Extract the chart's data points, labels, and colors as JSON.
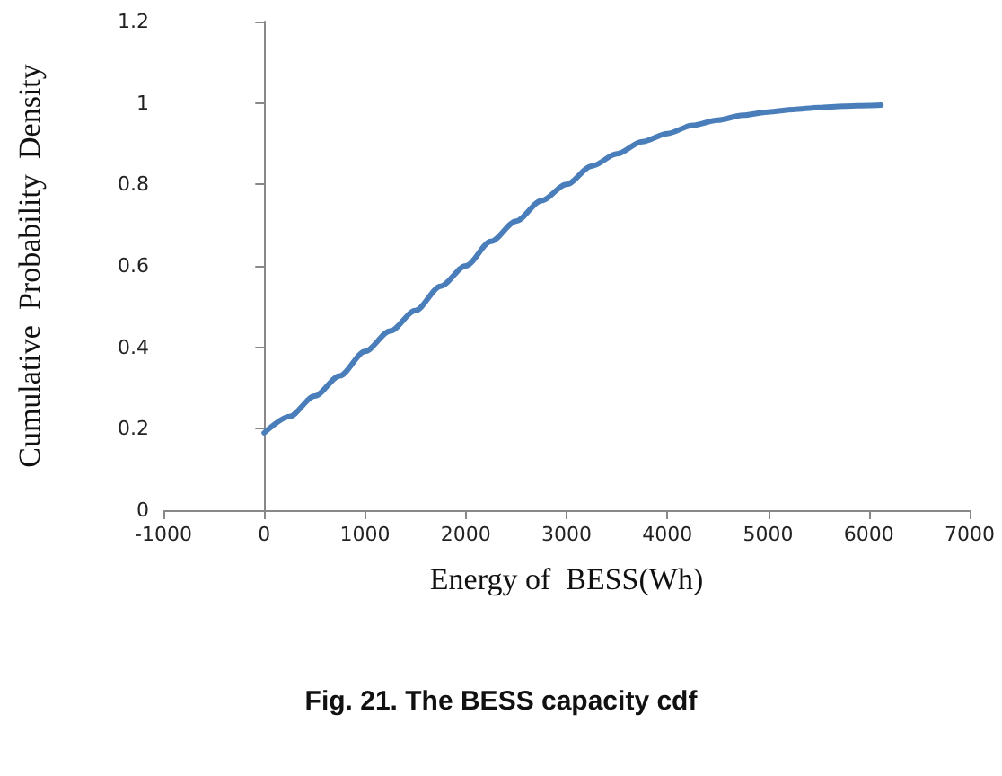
{
  "chart_data": {
    "type": "line",
    "title": "Fig. 21. The BESS capacity cdf",
    "xlabel": "Energy of  BESS(Wh)",
    "ylabel": "Cumulative  Probability  Density",
    "x": [
      0,
      250,
      500,
      750,
      1000,
      1250,
      1500,
      1750,
      2000,
      2250,
      2500,
      2750,
      3000,
      3250,
      3500,
      3750,
      4000,
      4250,
      4500,
      4750,
      5000,
      5250,
      5500,
      5750,
      6000,
      6120
    ],
    "series": [
      {
        "color": "#4a7ebb",
        "values": [
          0.19,
          0.23,
          0.28,
          0.33,
          0.39,
          0.44,
          0.49,
          0.55,
          0.6,
          0.66,
          0.71,
          0.76,
          0.8,
          0.845,
          0.875,
          0.905,
          0.925,
          0.945,
          0.958,
          0.97,
          0.978,
          0.984,
          0.989,
          0.992,
          0.994,
          0.995
        ]
      }
    ],
    "xlim": [
      -1000,
      7000
    ],
    "xticks": [
      -1000,
      0,
      1000,
      2000,
      3000,
      4000,
      5000,
      6000,
      7000
    ],
    "ylim": [
      0,
      1.2
    ],
    "yticks": [
      0,
      0.2,
      0.4,
      0.6,
      0.8,
      1,
      1.2
    ],
    "marker": "none",
    "line_style": "solid"
  }
}
